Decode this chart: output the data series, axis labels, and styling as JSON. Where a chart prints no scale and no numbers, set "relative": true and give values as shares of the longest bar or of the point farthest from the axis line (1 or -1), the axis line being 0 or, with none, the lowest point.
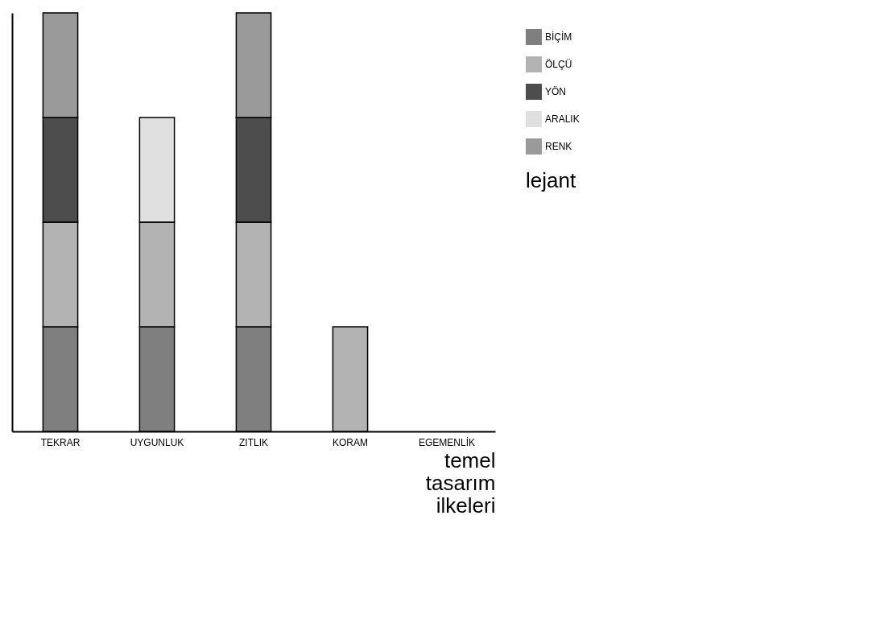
{
  "chart_data": {
    "type": "bar",
    "stacked": true,
    "relative": true,
    "xlabel": "temel tasarım ilkeleri",
    "legend_title": "lejant",
    "legend": "right",
    "categories": [
      "TEKRAR",
      "UYGUNLUK",
      "ZITLIK",
      "KORAM",
      "EGEMENLİK"
    ],
    "series": [
      {
        "name": "BİÇİM",
        "color": "#7f7f7f",
        "values": [
          0.25,
          0.25,
          0.25,
          0,
          0
        ]
      },
      {
        "name": "ÖLÇÜ",
        "color": "#b3b3b3",
        "values": [
          0.25,
          0.25,
          0.25,
          0.25,
          0
        ]
      },
      {
        "name": "YÖN",
        "color": "#4d4d4d",
        "values": [
          0.25,
          0,
          0.25,
          0,
          0
        ]
      },
      {
        "name": "ARALIK",
        "color": "#e0e0e0",
        "values": [
          0,
          0.25,
          0,
          0,
          0
        ]
      },
      {
        "name": "RENK",
        "color": "#9a9a9a",
        "values": [
          0.25,
          0,
          0.25,
          0,
          0
        ]
      }
    ]
  }
}
